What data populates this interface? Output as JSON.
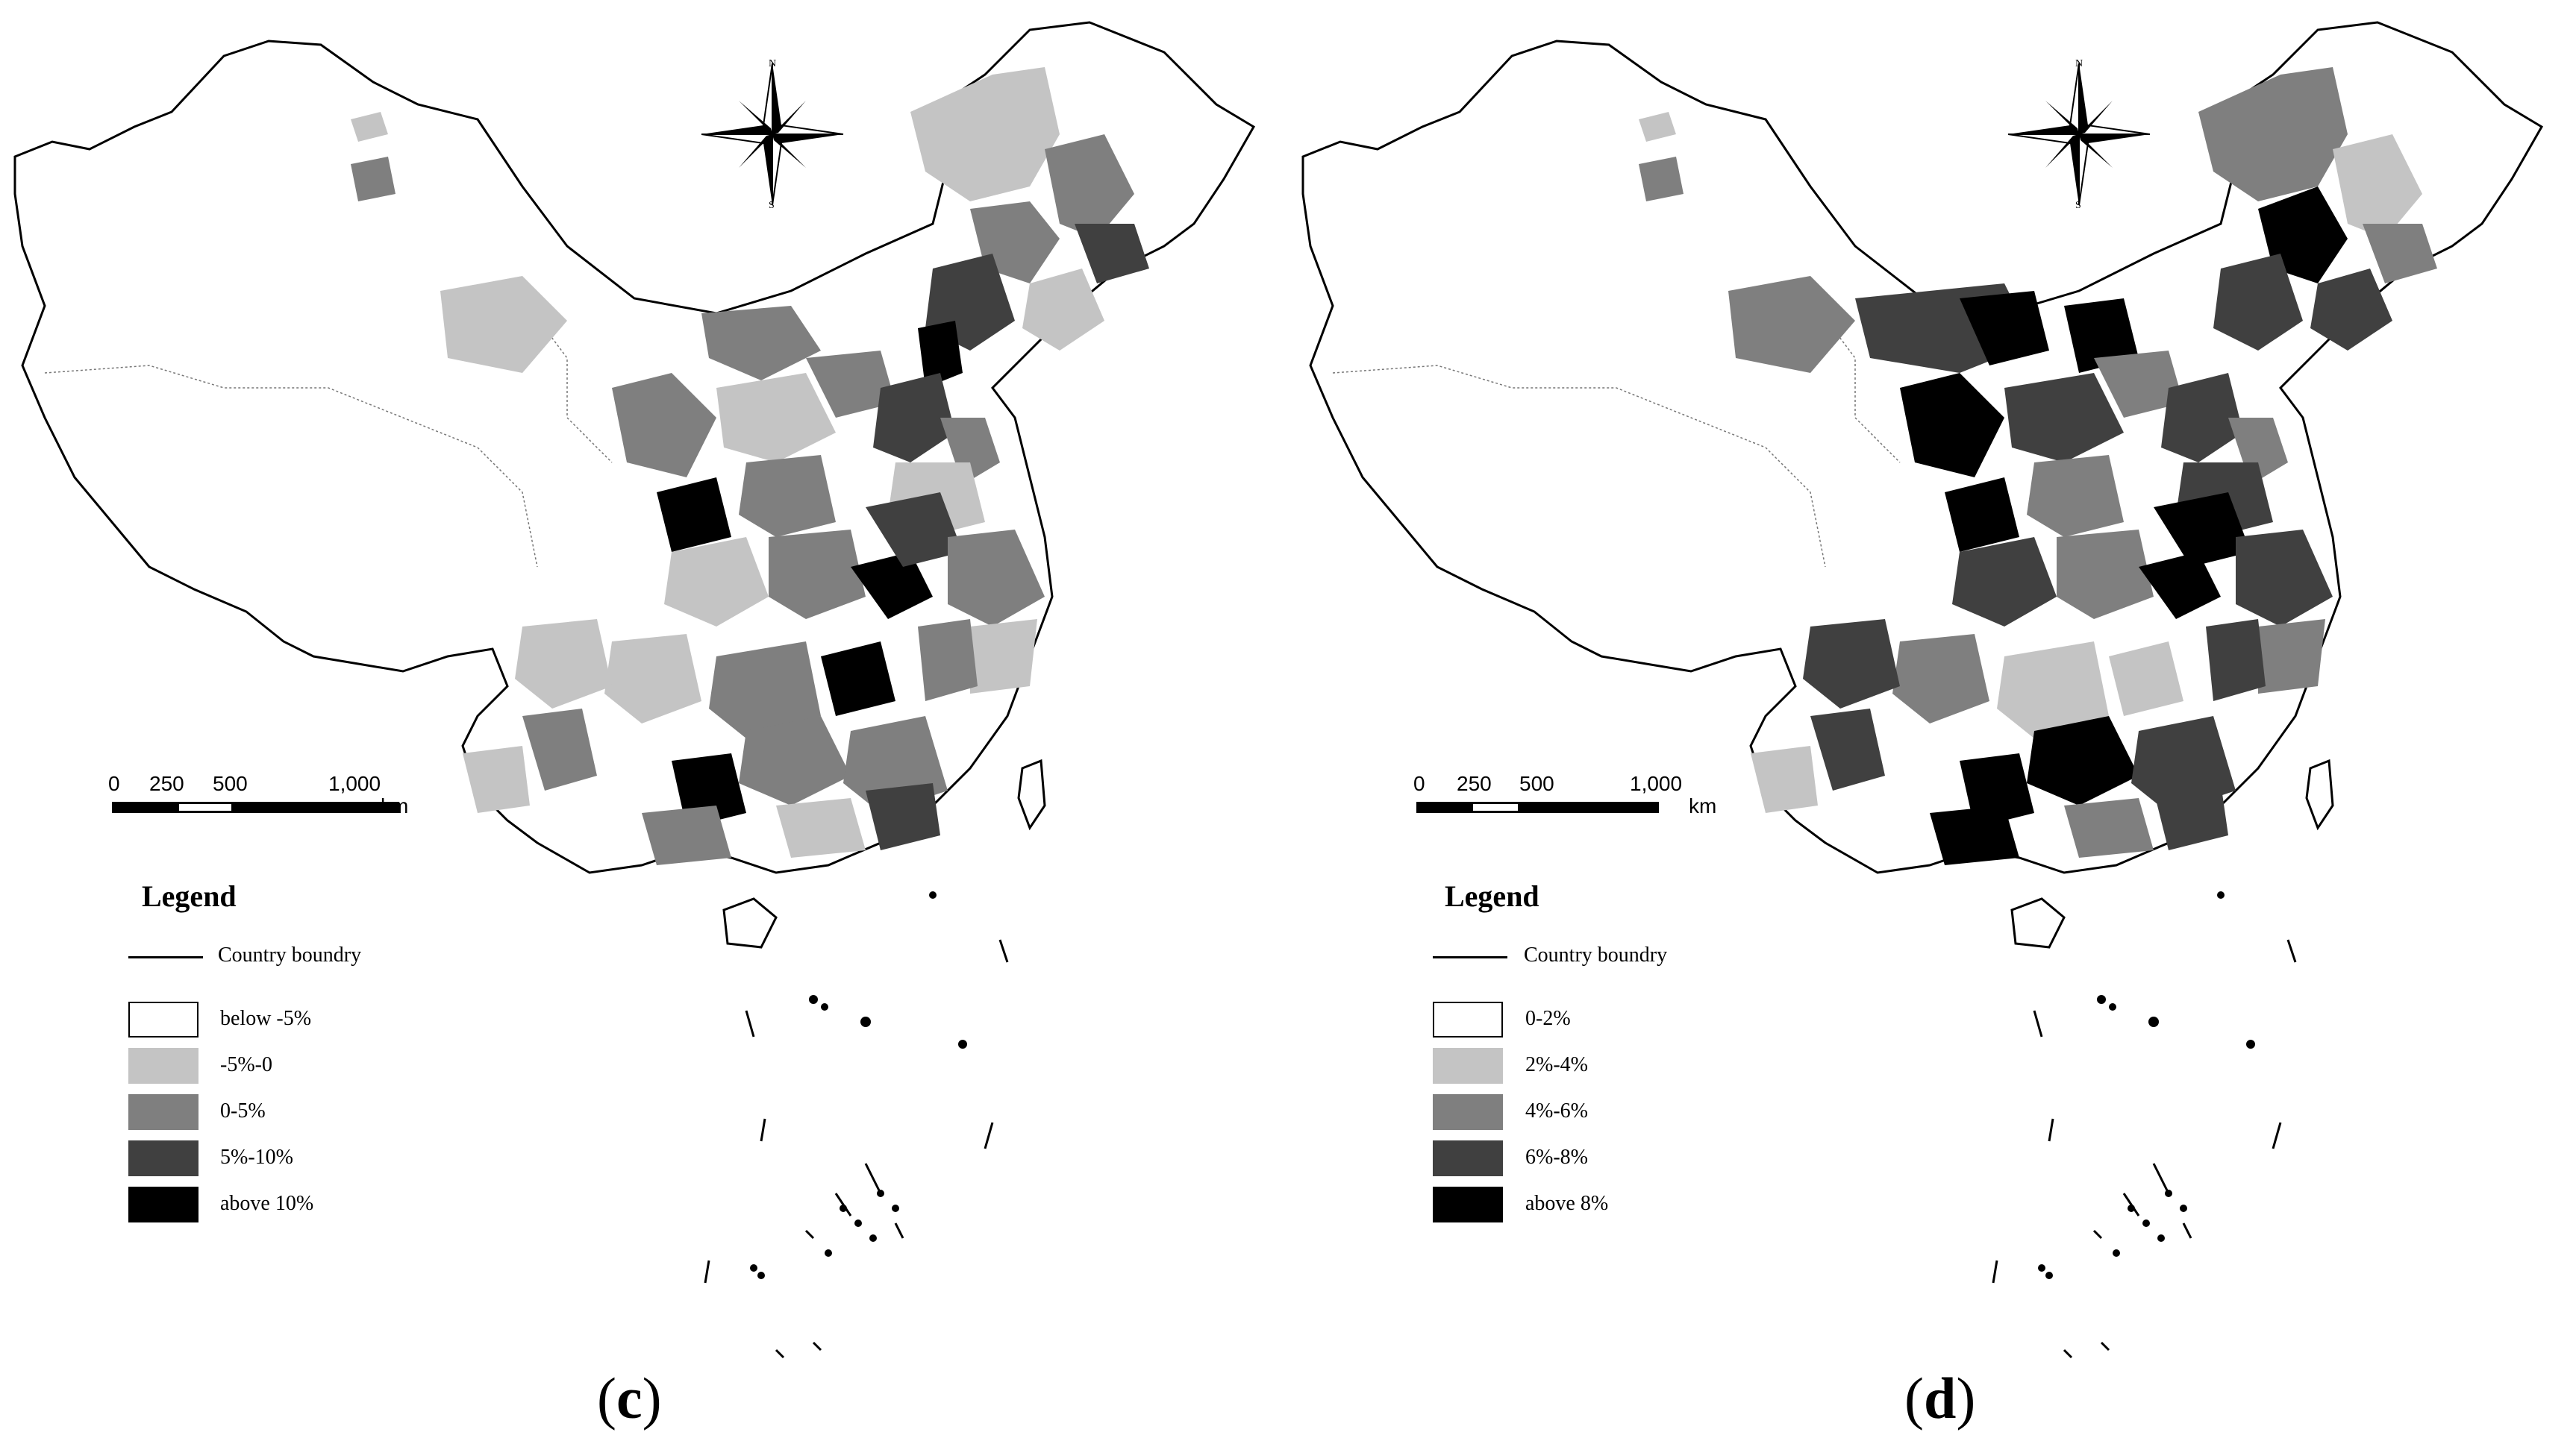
{
  "figure": {
    "panels": [
      {
        "id": "c",
        "caption_letter": "c",
        "legend": {
          "title": "Legend",
          "boundary_label": "Country boundry",
          "classes": [
            {
              "label": "below -5%",
              "color": "#ffffff"
            },
            {
              "label": "-5%-0",
              "color": "#c4c4c4"
            },
            {
              "label": "0-5%",
              "color": "#7f7f7f"
            },
            {
              "label": "5%-10%",
              "color": "#404040"
            },
            {
              "label": "above 10%",
              "color": "#000000"
            }
          ]
        },
        "scale": {
          "ticks": [
            "0",
            "250",
            "500",
            "1,000"
          ],
          "unit": "km"
        },
        "compass": {
          "north": "N",
          "south": "S"
        }
      },
      {
        "id": "d",
        "caption_letter": "d",
        "legend": {
          "title": "Legend",
          "boundary_label": "Country boundry",
          "classes": [
            {
              "label": "0-2%",
              "color": "#ffffff"
            },
            {
              "label": "2%-4%",
              "color": "#c4c4c4"
            },
            {
              "label": "4%-6%",
              "color": "#7f7f7f"
            },
            {
              "label": "6%-8%",
              "color": "#404040"
            },
            {
              "label": "above 8%",
              "color": "#000000"
            }
          ]
        },
        "scale": {
          "ticks": [
            "0",
            "250",
            "500",
            "1,000"
          ],
          "unit": "km"
        },
        "compass": {
          "north": "N",
          "south": "S"
        }
      }
    ]
  }
}
